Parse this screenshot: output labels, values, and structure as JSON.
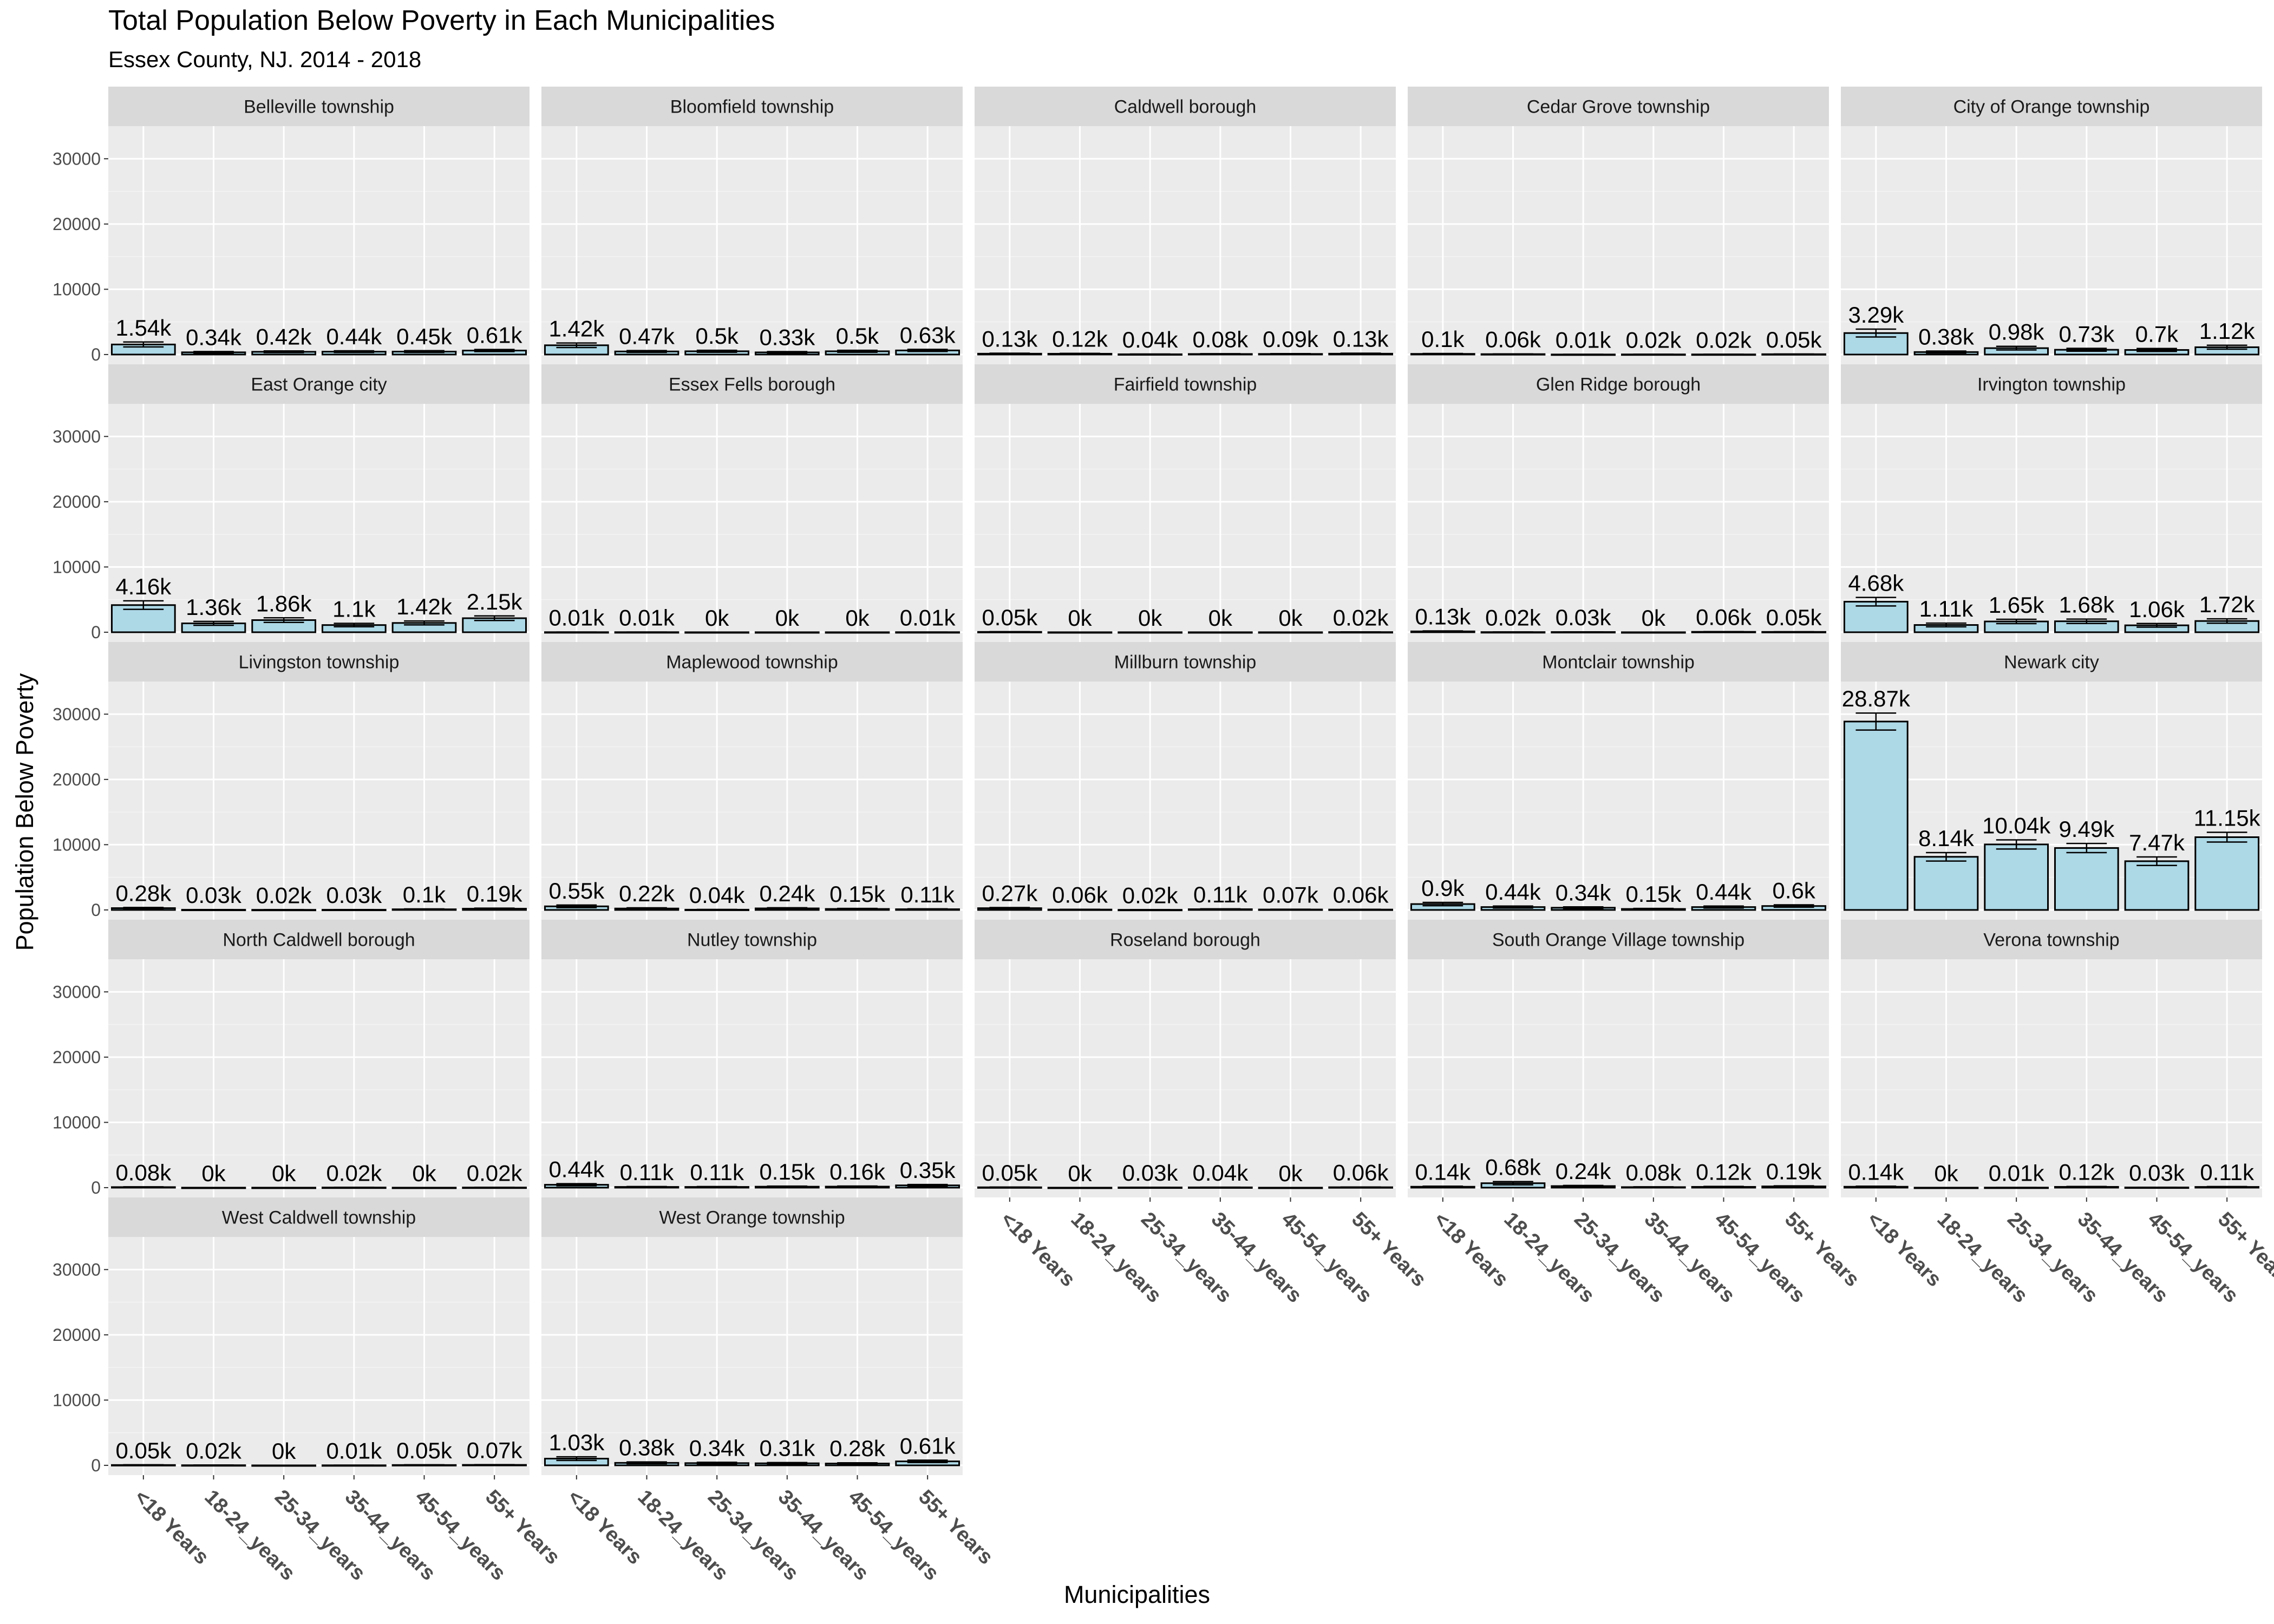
{
  "chart_data": {
    "type": "bar",
    "title": "Total Population Below Poverty in Each Municipalities",
    "subtitle": "Essex County, NJ. 2014 - 2018",
    "xlabel": "Municipalities",
    "ylabel": "Population Below Poverty",
    "categories": [
      "<18 Years",
      "18-24_years",
      "25-34_years",
      "35-44_years",
      "45-54_years",
      "55+ Years"
    ],
    "y_ticks": [
      0,
      10000,
      20000,
      30000
    ],
    "ylim": [
      -1500,
      35000
    ],
    "grid": true,
    "error_bars": true,
    "bar_color": "#add8e6",
    "panel_background": "#ebebeb",
    "strip_background": "#d9d9d9",
    "facets": [
      {
        "name": "Belleville township",
        "values": [
          1540,
          340,
          420,
          440,
          450,
          610
        ],
        "labels": [
          "1.54k",
          "0.34k",
          "0.42k",
          "0.44k",
          "0.45k",
          "0.61k"
        ],
        "errors": [
          380,
          120,
          130,
          130,
          140,
          160
        ]
      },
      {
        "name": "Bloomfield township",
        "values": [
          1420,
          470,
          500,
          330,
          500,
          630
        ],
        "labels": [
          "1.42k",
          "0.47k",
          "0.5k",
          "0.33k",
          "0.5k",
          "0.63k"
        ],
        "errors": [
          350,
          140,
          150,
          120,
          150,
          160
        ]
      },
      {
        "name": "Caldwell borough",
        "values": [
          130,
          120,
          40,
          80,
          90,
          130
        ],
        "labels": [
          "0.13k",
          "0.12k",
          "0.04k",
          "0.08k",
          "0.09k",
          "0.13k"
        ],
        "errors": [
          70,
          60,
          40,
          50,
          50,
          70
        ]
      },
      {
        "name": "Cedar Grove township",
        "values": [
          100,
          60,
          10,
          20,
          20,
          50
        ],
        "labels": [
          "0.1k",
          "0.06k",
          "0.01k",
          "0.02k",
          "0.02k",
          "0.05k"
        ],
        "errors": [
          60,
          40,
          20,
          20,
          20,
          30
        ]
      },
      {
        "name": "City of Orange township",
        "values": [
          3290,
          380,
          980,
          730,
          700,
          1120
        ],
        "labels": [
          "3.29k",
          "0.38k",
          "0.98k",
          "0.73k",
          "0.7k",
          "1.12k"
        ],
        "errors": [
          600,
          150,
          280,
          220,
          230,
          300
        ]
      },
      {
        "name": "East Orange city",
        "values": [
          4160,
          1360,
          1860,
          1100,
          1420,
          2150
        ],
        "labels": [
          "4.16k",
          "1.36k",
          "1.86k",
          "1.1k",
          "1.42k",
          "2.15k"
        ],
        "errors": [
          650,
          300,
          350,
          260,
          300,
          350
        ]
      },
      {
        "name": "Essex Fells borough",
        "values": [
          10,
          10,
          0,
          0,
          0,
          10
        ],
        "labels": [
          "0.01k",
          "0.01k",
          "0k",
          "0k",
          "0k",
          "0.01k"
        ],
        "errors": [
          10,
          10,
          0,
          0,
          0,
          10
        ]
      },
      {
        "name": "Fairfield township",
        "values": [
          50,
          0,
          0,
          0,
          0,
          20
        ],
        "labels": [
          "0.05k",
          "0k",
          "0k",
          "0k",
          "0k",
          "0.02k"
        ],
        "errors": [
          40,
          0,
          0,
          0,
          0,
          20
        ]
      },
      {
        "name": "Glen Ridge borough",
        "values": [
          130,
          20,
          30,
          0,
          60,
          50
        ],
        "labels": [
          "0.13k",
          "0.02k",
          "0.03k",
          "0k",
          "0.06k",
          "0.05k"
        ],
        "errors": [
          70,
          20,
          30,
          0,
          40,
          30
        ]
      },
      {
        "name": "Irvington township",
        "values": [
          4680,
          1110,
          1650,
          1680,
          1060,
          1720
        ],
        "labels": [
          "4.68k",
          "1.11k",
          "1.65k",
          "1.68k",
          "1.06k",
          "1.72k"
        ],
        "errors": [
          650,
          280,
          330,
          340,
          280,
          340
        ]
      },
      {
        "name": "Livingston township",
        "values": [
          280,
          30,
          20,
          30,
          100,
          190
        ],
        "labels": [
          "0.28k",
          "0.03k",
          "0.02k",
          "0.03k",
          "0.1k",
          "0.19k"
        ],
        "errors": [
          100,
          30,
          20,
          30,
          60,
          80
        ]
      },
      {
        "name": "Maplewood township",
        "values": [
          550,
          220,
          40,
          240,
          150,
          110
        ],
        "labels": [
          "0.55k",
          "0.22k",
          "0.04k",
          "0.24k",
          "0.15k",
          "0.11k"
        ],
        "errors": [
          200,
          100,
          40,
          100,
          80,
          60
        ]
      },
      {
        "name": "Millburn township",
        "values": [
          270,
          60,
          20,
          110,
          70,
          60
        ],
        "labels": [
          "0.27k",
          "0.06k",
          "0.02k",
          "0.11k",
          "0.07k",
          "0.06k"
        ],
        "errors": [
          100,
          40,
          20,
          60,
          40,
          40
        ]
      },
      {
        "name": "Montclair township",
        "values": [
          900,
          440,
          340,
          150,
          440,
          600
        ],
        "labels": [
          "0.9k",
          "0.44k",
          "0.34k",
          "0.15k",
          "0.44k",
          "0.6k"
        ],
        "errors": [
          250,
          150,
          130,
          80,
          150,
          180
        ]
      },
      {
        "name": "Newark city",
        "values": [
          28870,
          8140,
          10040,
          9490,
          7470,
          11150
        ],
        "labels": [
          "28.87k",
          "8.14k",
          "10.04k",
          "9.49k",
          "7.47k",
          "11.15k"
        ],
        "errors": [
          1300,
          650,
          700,
          700,
          650,
          750
        ]
      },
      {
        "name": "North Caldwell borough",
        "values": [
          80,
          0,
          0,
          20,
          0,
          20
        ],
        "labels": [
          "0.08k",
          "0k",
          "0k",
          "0.02k",
          "0k",
          "0.02k"
        ],
        "errors": [
          50,
          0,
          0,
          20,
          0,
          20
        ]
      },
      {
        "name": "Nutley township",
        "values": [
          440,
          110,
          110,
          150,
          160,
          350
        ],
        "labels": [
          "0.44k",
          "0.11k",
          "0.11k",
          "0.15k",
          "0.16k",
          "0.35k"
        ],
        "errors": [
          160,
          60,
          60,
          80,
          80,
          130
        ]
      },
      {
        "name": "Roseland borough",
        "values": [
          50,
          0,
          30,
          40,
          0,
          60
        ],
        "labels": [
          "0.05k",
          "0k",
          "0.03k",
          "0.04k",
          "0k",
          "0.06k"
        ],
        "errors": [
          40,
          0,
          30,
          30,
          0,
          40
        ]
      },
      {
        "name": "South Orange Village township",
        "values": [
          140,
          680,
          240,
          80,
          120,
          190
        ],
        "labels": [
          "0.14k",
          "0.68k",
          "0.24k",
          "0.08k",
          "0.12k",
          "0.19k"
        ],
        "errors": [
          80,
          250,
          100,
          50,
          70,
          80
        ]
      },
      {
        "name": "Verona township",
        "values": [
          140,
          0,
          10,
          120,
          30,
          110
        ],
        "labels": [
          "0.14k",
          "0k",
          "0.01k",
          "0.12k",
          "0.03k",
          "0.11k"
        ],
        "errors": [
          80,
          0,
          10,
          60,
          30,
          60
        ]
      },
      {
        "name": "West Caldwell township",
        "values": [
          50,
          20,
          0,
          10,
          50,
          70
        ],
        "labels": [
          "0.05k",
          "0.02k",
          "0k",
          "0.01k",
          "0.05k",
          "0.07k"
        ],
        "errors": [
          40,
          20,
          0,
          10,
          40,
          40
        ]
      },
      {
        "name": "West Orange township",
        "values": [
          1030,
          380,
          340,
          310,
          280,
          610
        ],
        "labels": [
          "1.03k",
          "0.38k",
          "0.34k",
          "0.31k",
          "0.28k",
          "0.61k"
        ],
        "errors": [
          280,
          140,
          130,
          120,
          110,
          180
        ]
      }
    ]
  }
}
